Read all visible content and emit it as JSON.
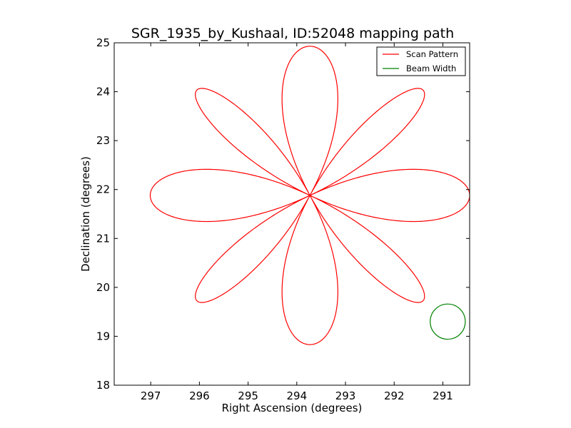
{
  "chart_data": {
    "type": "line",
    "title": "SGR_1935_by_Kushaal, ID:52048 mapping path",
    "xlabel": "Right Ascension (degrees)",
    "ylabel": "Declination (degrees)",
    "xlim": [
      297.75,
      290.45
    ],
    "ylim": [
      18,
      25
    ],
    "x_axis_inverted": true,
    "xticks": [
      297,
      296,
      295,
      294,
      293,
      292,
      291
    ],
    "yticks": [
      18,
      19,
      20,
      21,
      22,
      23,
      24,
      25
    ],
    "xtick_labels": [
      "297",
      "296",
      "295",
      "294",
      "293",
      "292",
      "291"
    ],
    "ytick_labels": [
      "18",
      "19",
      "20",
      "21",
      "22",
      "23",
      "24",
      "25"
    ],
    "grid": false,
    "legend": {
      "placement": "top-right"
    },
    "series": [
      {
        "name": "Scan Pattern",
        "color": "#ff0000",
        "kind": "rose-curve",
        "center": {
          "x": 293.73,
          "y": 21.88
        },
        "petals": 8,
        "petal_length_ra": 3.28,
        "petal_length_dec": 3.05,
        "petal_width_ra": 0.48,
        "petal_width_dec": 0.45
      },
      {
        "name": "Beam Width",
        "color": "#008000",
        "kind": "circle",
        "center": {
          "x": 290.9,
          "y": 19.3
        },
        "radius": 0.36
      }
    ]
  }
}
